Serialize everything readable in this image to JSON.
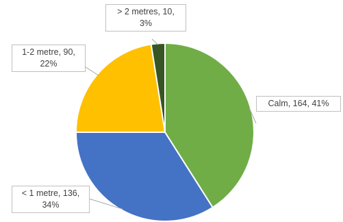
{
  "chart_data": {
    "type": "pie",
    "title": "",
    "slices": [
      {
        "category": "Calm",
        "value": 164,
        "percent": "41%",
        "color": "#70ad47",
        "label_line1": "Calm, 164, 41%",
        "label_line2": ""
      },
      {
        "category": "< 1 metre",
        "value": 136,
        "percent": "34%",
        "color": "#4472c4",
        "label_line1": "< 1 metre, 136,",
        "label_line2": "34%"
      },
      {
        "category": "1-2 metre",
        "value": 90,
        "percent": "22%",
        "color": "#ffc000",
        "label_line1": "1-2 metre, 90,",
        "label_line2": "22%"
      },
      {
        "category": "> 2 metres",
        "value": 10,
        "percent": "3%",
        "color": "#375623",
        "label_line1": "> 2 metres, 10,",
        "label_line2": "3%"
      }
    ]
  }
}
